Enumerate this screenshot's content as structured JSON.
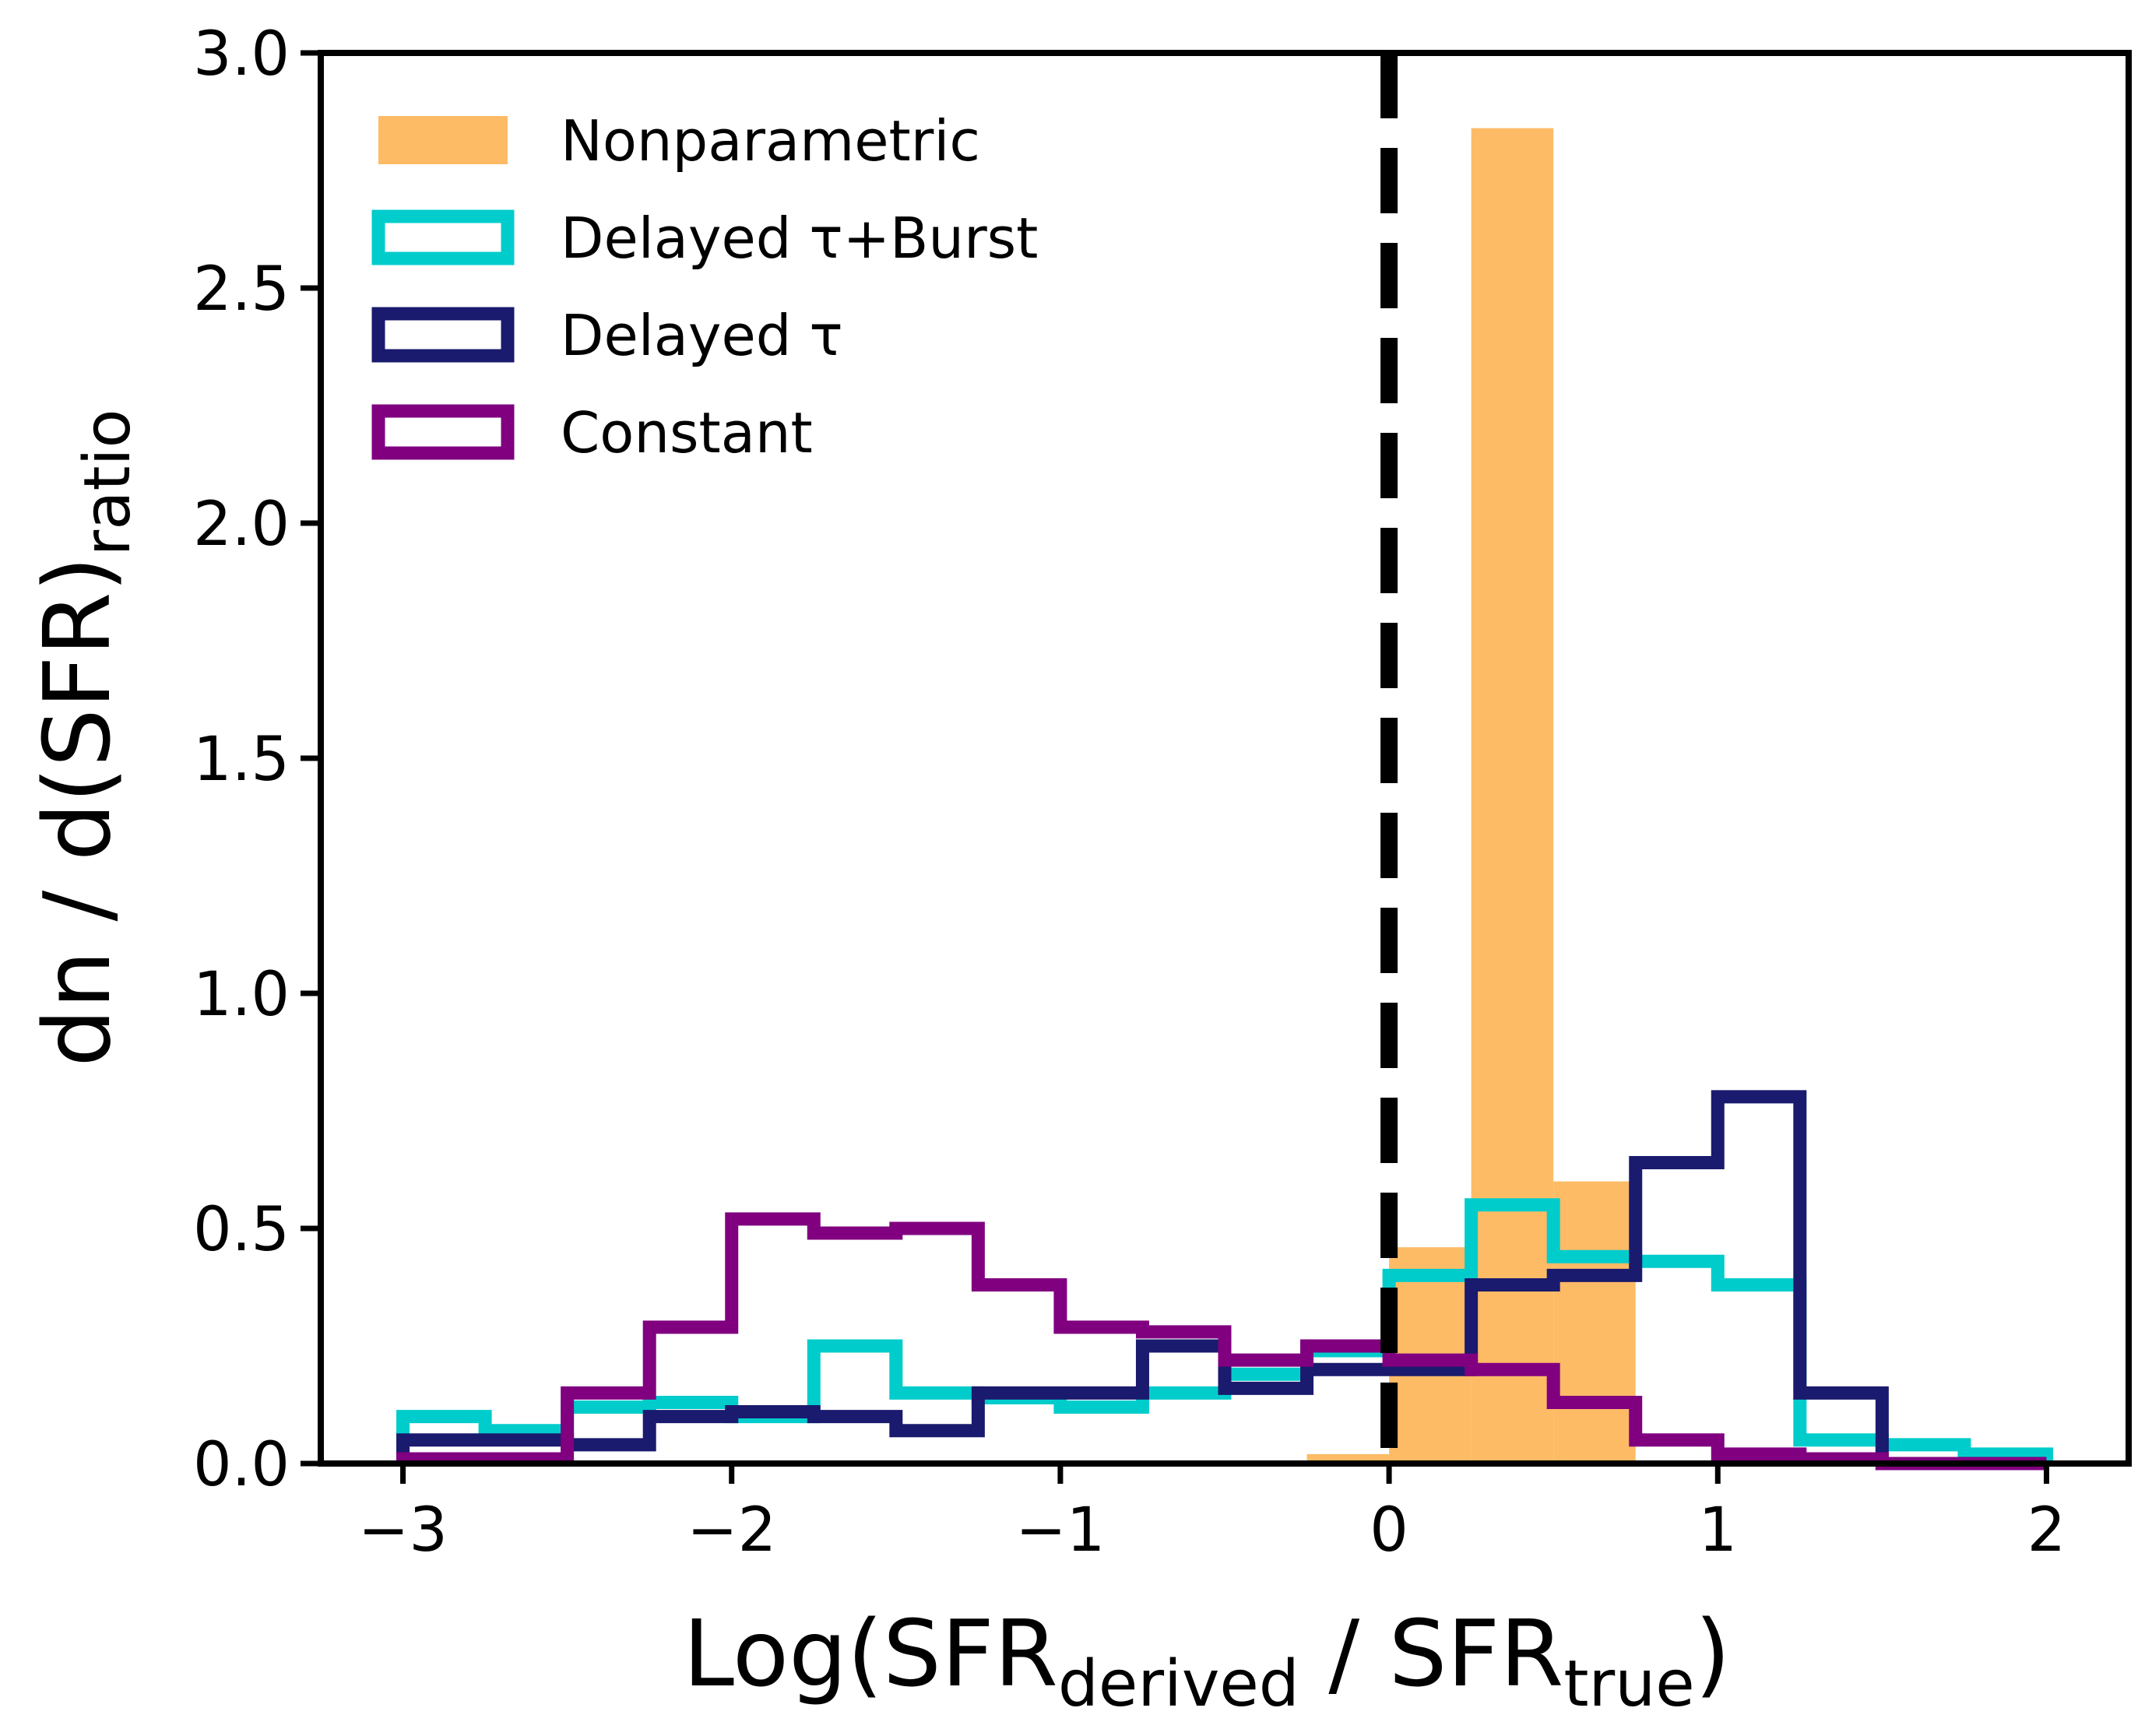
{
  "chart_data": {
    "type": "histogram",
    "xlabel": {
      "main": "Log(SFR",
      "sub1": "derived",
      "mid": " / SFR",
      "sub2": "true",
      "end": ")"
    },
    "ylabel": {
      "main": "dn / d(SFR)",
      "sub": "ratio"
    },
    "xlim": [
      -3.25,
      2.25
    ],
    "ylim": [
      0.0,
      3.0
    ],
    "xticks": [
      -3,
      -2,
      -1,
      0,
      1,
      2
    ],
    "xtick_labels": [
      "−3",
      "−2",
      "−1",
      "0",
      "1",
      "2"
    ],
    "yticks": [
      0.0,
      0.5,
      1.0,
      1.5,
      2.0,
      2.5,
      3.0
    ],
    "ytick_labels": [
      "0.0",
      "0.5",
      "1.0",
      "1.5",
      "2.0",
      "2.5",
      "3.0"
    ],
    "reference_line": {
      "x": 0,
      "style": "dashed",
      "color": "#000000"
    },
    "legend": {
      "placement": "top-left"
    },
    "series": [
      {
        "name": "Nonparametric",
        "style": "filled",
        "color": "#fdbb66",
        "bin_edges": [
          -0.25,
          0.0,
          0.25,
          0.5,
          0.75,
          1.0
        ],
        "values": [
          0.02,
          0.46,
          2.84,
          0.6,
          0.0
        ]
      },
      {
        "name": "Delayed τ+Burst",
        "style": "step",
        "color": "#00cccc",
        "bin_edges": [
          -3.0,
          -2.75,
          -2.5,
          -2.25,
          -2.0,
          -1.75,
          -1.5,
          -1.25,
          -1.0,
          -0.75,
          -0.5,
          -0.25,
          0.0,
          0.25,
          0.5,
          0.75,
          1.0,
          1.25,
          1.5,
          1.75,
          2.0
        ],
        "values": [
          0.1,
          0.07,
          0.12,
          0.13,
          0.1,
          0.25,
          0.15,
          0.14,
          0.12,
          0.15,
          0.19,
          0.24,
          0.4,
          0.55,
          0.44,
          0.43,
          0.38,
          0.05,
          0.04,
          0.02
        ]
      },
      {
        "name": "Delayed τ",
        "style": "step",
        "color": "#1a1a6e",
        "bin_edges": [
          -3.0,
          -2.75,
          -2.5,
          -2.25,
          -2.0,
          -1.75,
          -1.5,
          -1.25,
          -1.0,
          -0.75,
          -0.5,
          -0.25,
          0.0,
          0.25,
          0.5,
          0.75,
          1.0,
          1.25,
          1.5,
          1.75,
          2.0
        ],
        "values": [
          0.05,
          0.05,
          0.04,
          0.1,
          0.11,
          0.1,
          0.07,
          0.15,
          0.15,
          0.25,
          0.16,
          0.2,
          0.2,
          0.38,
          0.4,
          0.64,
          0.78,
          0.15,
          0.0,
          0.0
        ]
      },
      {
        "name": "Constant",
        "style": "step",
        "color": "#800080",
        "bin_edges": [
          -3.0,
          -2.75,
          -2.5,
          -2.25,
          -2.0,
          -1.75,
          -1.5,
          -1.25,
          -1.0,
          -0.75,
          -0.5,
          -0.25,
          0.0,
          0.25,
          0.5,
          0.75,
          1.0,
          1.25,
          1.5,
          1.75,
          2.0
        ],
        "values": [
          0.01,
          0.01,
          0.15,
          0.29,
          0.52,
          0.49,
          0.5,
          0.38,
          0.29,
          0.28,
          0.22,
          0.25,
          0.22,
          0.2,
          0.13,
          0.05,
          0.02,
          0.01,
          0.0,
          0.0
        ]
      }
    ]
  }
}
